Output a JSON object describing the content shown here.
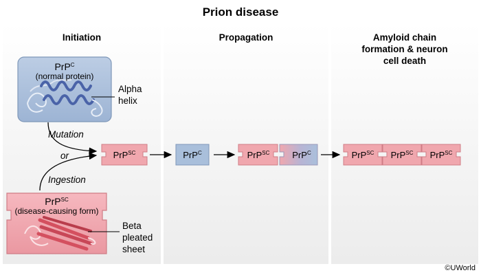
{
  "title": "Prion disease",
  "columns": {
    "initiation": "Initiation",
    "propagation": "Propagation",
    "amyloid_line1": "Amyloid chain",
    "amyloid_line2": "formation & neuron",
    "amyloid_line3": "cell death"
  },
  "normal_box": {
    "name": "PrP",
    "sup": "C",
    "desc": "(normal protein)"
  },
  "disease_box": {
    "name": "PrP",
    "sup": "SC",
    "desc": "(disease-causing form)"
  },
  "labels": {
    "alpha_line1": "Alpha",
    "alpha_line2": "helix",
    "beta_line1": "Beta",
    "beta_line2": "pleated",
    "beta_line3": "sheet",
    "mutation": "Mutation",
    "or": "or",
    "ingestion": "Ingestion"
  },
  "tokens": {
    "base": "PrP",
    "sc": "SC",
    "c": "C"
  },
  "credit": "©UWorld",
  "colors": {
    "normal_fill": "#a9bfdb",
    "normal_stroke": "#7e97b8",
    "disease_fill": "#f0a7ae",
    "disease_stroke": "#cf7c85",
    "helix": "#4a63a8",
    "sheet": "#d4505f"
  }
}
